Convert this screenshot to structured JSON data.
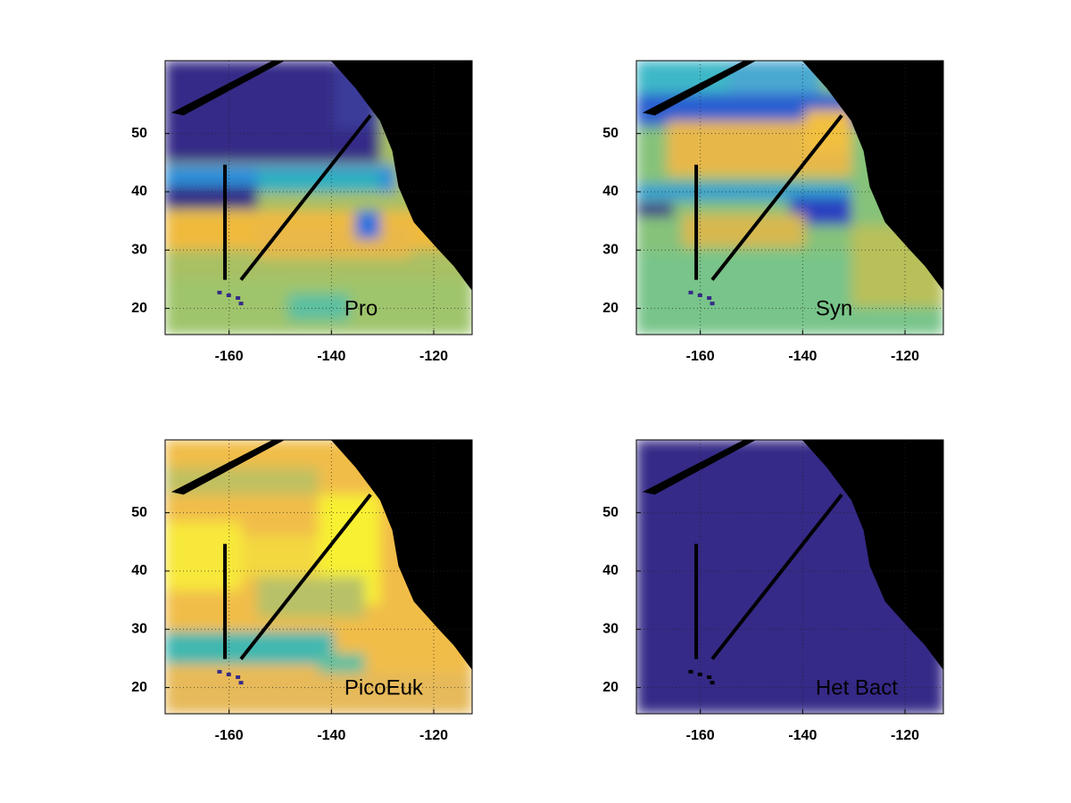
{
  "chart_data": [
    {
      "type": "map",
      "title": "Pro",
      "xlim": [
        -172.5,
        -112.5
      ],
      "ylim": [
        15.5,
        62.5
      ],
      "xticks": [
        -160,
        -140,
        -120
      ],
      "yticks": [
        20,
        30,
        40,
        50
      ],
      "grid": true
    },
    {
      "type": "map",
      "title": "Syn",
      "xlim": [
        -172.5,
        -112.5
      ],
      "ylim": [
        15.5,
        62.5
      ],
      "xticks": [
        -160,
        -140,
        -120
      ],
      "yticks": [
        20,
        30,
        40,
        50
      ],
      "grid": true
    },
    {
      "type": "map",
      "title": "PicoEuk",
      "xlim": [
        -172.5,
        -112.5
      ],
      "ylim": [
        15.5,
        62.5
      ],
      "xticks": [
        -160,
        -140,
        -120
      ],
      "yticks": [
        20,
        30,
        40,
        50
      ],
      "grid": true
    },
    {
      "type": "map",
      "title": "Het Bact",
      "xlim": [
        -172.5,
        -112.5
      ],
      "ylim": [
        15.5,
        62.5
      ],
      "xticks": [
        -160,
        -140,
        -120
      ],
      "yticks": [
        20,
        30,
        40,
        50
      ],
      "grid": true
    }
  ]
}
